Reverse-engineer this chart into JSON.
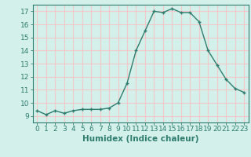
{
  "x": [
    0,
    1,
    2,
    3,
    4,
    5,
    6,
    7,
    8,
    9,
    10,
    11,
    12,
    13,
    14,
    15,
    16,
    17,
    18,
    19,
    20,
    21,
    22,
    23
  ],
  "y": [
    9.4,
    9.1,
    9.4,
    9.2,
    9.4,
    9.5,
    9.5,
    9.5,
    9.6,
    10.0,
    11.5,
    14.0,
    15.5,
    17.0,
    16.9,
    17.2,
    16.9,
    16.9,
    16.2,
    14.0,
    12.9,
    11.8,
    11.1,
    10.8
  ],
  "xlim": [
    -0.5,
    23.5
  ],
  "ylim": [
    8.5,
    17.5
  ],
  "yticks": [
    9,
    10,
    11,
    12,
    13,
    14,
    15,
    16,
    17
  ],
  "xticks": [
    0,
    1,
    2,
    3,
    4,
    5,
    6,
    7,
    8,
    9,
    10,
    11,
    12,
    13,
    14,
    15,
    16,
    17,
    18,
    19,
    20,
    21,
    22,
    23
  ],
  "xlabel": "Humidex (Indice chaleur)",
  "line_color": "#2e7d6e",
  "marker": "+",
  "bg_color": "#d4f0eb",
  "grid_color": "#f5c8c8",
  "tick_fontsize": 6.5,
  "label_fontsize": 7.5
}
